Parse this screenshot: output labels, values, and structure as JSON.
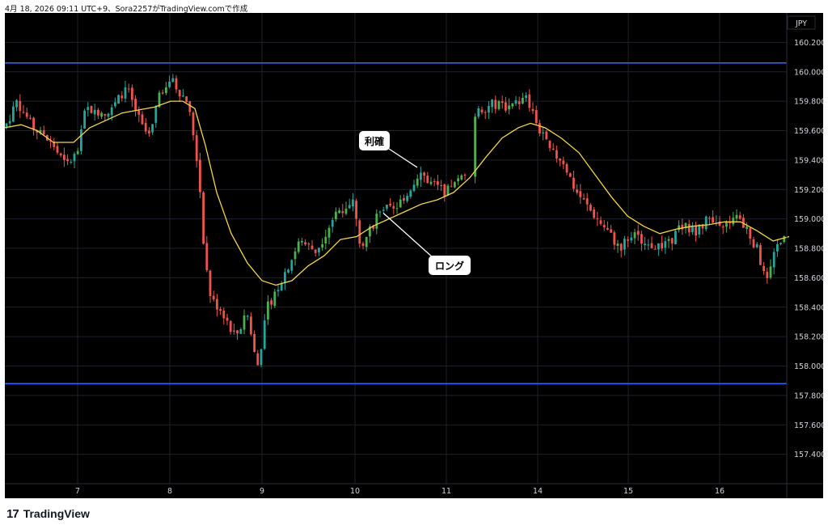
{
  "header": {
    "caption": "4月 18, 2026 09:11 UTC+9、Sora2257がTradingView.comで作成"
  },
  "brand": {
    "logo_glyph": "17",
    "name": "TradingView"
  },
  "colors": {
    "background": "#000000",
    "grid": "#1e222d",
    "up": "#26a69a",
    "up_bright": "#4caf50",
    "down": "#ef5350",
    "ma": "#f5d547",
    "hline": "#2962ff",
    "axis_text": "#d1d4dc"
  },
  "chart_data": {
    "type": "candlestick",
    "currency_label": "JPY",
    "ylim": [
      157.2,
      160.4
    ],
    "y_ticks": [
      "160.200",
      "160.000",
      "159.800",
      "159.600",
      "159.400",
      "159.200",
      "159.000",
      "158.800",
      "158.600",
      "158.400",
      "158.200",
      "158.000",
      "157.800",
      "157.600",
      "157.400"
    ],
    "x_ticks": [
      "7",
      "8",
      "9",
      "10",
      "11",
      "14",
      "15",
      "16"
    ],
    "horizontal_lines": [
      160.06,
      157.88
    ],
    "annotations": [
      {
        "text": "利確",
        "price": 159.35
      },
      {
        "text": "ロング",
        "price": 159.04
      }
    ],
    "price_path": [
      [
        0,
        159.62
      ],
      [
        15,
        159.8
      ],
      [
        35,
        159.62
      ],
      [
        60,
        159.5
      ],
      [
        75,
        159.36
      ],
      [
        90,
        159.45
      ],
      [
        100,
        159.75
      ],
      [
        130,
        159.72
      ],
      [
        150,
        159.9
      ],
      [
        170,
        159.62
      ],
      [
        180,
        159.55
      ],
      [
        190,
        159.85
      ],
      [
        205,
        159.95
      ],
      [
        225,
        159.8
      ],
      [
        232,
        159.62
      ],
      [
        240,
        159.3
      ],
      [
        247,
        158.75
      ],
      [
        255,
        158.45
      ],
      [
        268,
        158.38
      ],
      [
        285,
        158.2
      ],
      [
        300,
        158.35
      ],
      [
        312,
        157.98
      ],
      [
        325,
        158.4
      ],
      [
        345,
        158.62
      ],
      [
        365,
        158.85
      ],
      [
        385,
        158.78
      ],
      [
        410,
        159.05
      ],
      [
        432,
        159.12
      ],
      [
        440,
        158.82
      ],
      [
        450,
        158.9
      ],
      [
        465,
        159.08
      ],
      [
        480,
        159.05
      ],
      [
        500,
        159.2
      ],
      [
        512,
        159.32
      ],
      [
        525,
        159.25
      ],
      [
        545,
        159.18
      ],
      [
        555,
        159.22
      ],
      [
        568,
        159.3
      ],
      [
        582,
        159.72
      ],
      [
        600,
        159.78
      ],
      [
        625,
        159.76
      ],
      [
        645,
        159.82
      ],
      [
        660,
        159.62
      ],
      [
        675,
        159.45
      ],
      [
        690,
        159.4
      ],
      [
        705,
        159.2
      ],
      [
        725,
        159.05
      ],
      [
        745,
        158.92
      ],
      [
        760,
        158.8
      ],
      [
        775,
        158.9
      ],
      [
        795,
        158.82
      ],
      [
        820,
        158.82
      ],
      [
        835,
        158.95
      ],
      [
        855,
        158.92
      ],
      [
        870,
        159.0
      ],
      [
        885,
        158.92
      ],
      [
        900,
        159.02
      ],
      [
        915,
        158.95
      ],
      [
        930,
        158.8
      ],
      [
        942,
        158.55
      ],
      [
        955,
        158.82
      ],
      [
        968,
        158.95
      ]
    ],
    "moving_average": [
      [
        0,
        159.62
      ],
      [
        20,
        159.64
      ],
      [
        40,
        159.6
      ],
      [
        60,
        159.52
      ],
      [
        85,
        159.52
      ],
      [
        105,
        159.62
      ],
      [
        125,
        159.67
      ],
      [
        145,
        159.72
      ],
      [
        165,
        159.74
      ],
      [
        185,
        159.76
      ],
      [
        205,
        159.8
      ],
      [
        220,
        159.8
      ],
      [
        235,
        159.75
      ],
      [
        248,
        159.5
      ],
      [
        262,
        159.18
      ],
      [
        280,
        158.9
      ],
      [
        300,
        158.7
      ],
      [
        318,
        158.58
      ],
      [
        335,
        158.55
      ],
      [
        355,
        158.58
      ],
      [
        375,
        158.68
      ],
      [
        395,
        158.75
      ],
      [
        415,
        158.86
      ],
      [
        435,
        158.88
      ],
      [
        455,
        158.95
      ],
      [
        475,
        159.0
      ],
      [
        495,
        159.05
      ],
      [
        515,
        159.1
      ],
      [
        535,
        159.13
      ],
      [
        555,
        159.18
      ],
      [
        575,
        159.28
      ],
      [
        595,
        159.42
      ],
      [
        615,
        159.55
      ],
      [
        635,
        159.62
      ],
      [
        650,
        159.65
      ],
      [
        668,
        159.62
      ],
      [
        688,
        159.55
      ],
      [
        710,
        159.45
      ],
      [
        730,
        159.3
      ],
      [
        750,
        159.15
      ],
      [
        770,
        159.02
      ],
      [
        790,
        158.95
      ],
      [
        810,
        158.9
      ],
      [
        830,
        158.93
      ],
      [
        850,
        158.95
      ],
      [
        870,
        158.96
      ],
      [
        890,
        158.98
      ],
      [
        910,
        158.98
      ],
      [
        930,
        158.92
      ],
      [
        950,
        158.85
      ],
      [
        970,
        158.88
      ]
    ]
  }
}
